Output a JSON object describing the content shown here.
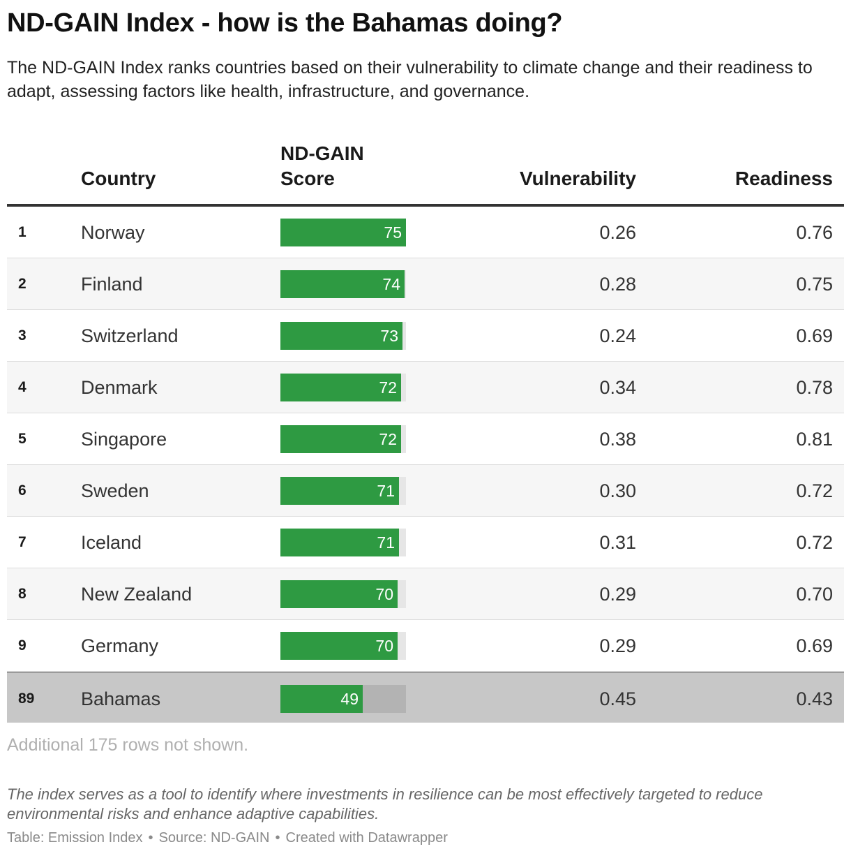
{
  "title": "ND-GAIN Index - how is the Bahamas doing?",
  "subtitle": "The ND-GAIN Index ranks countries based on their vulnerability to climate change and their readiness to adapt, assessing factors like health, infrastructure, and governance.",
  "columns": {
    "country": "Country",
    "score": "ND-GAIN Score",
    "vulnerability": "Vulnerability",
    "readiness": "Readiness"
  },
  "colors": {
    "bar": "#2e9a42",
    "bar_track": "#e6e6e6",
    "highlight_row": "#c7c7c7"
  },
  "chart_data": {
    "type": "table",
    "score_scale": [
      0,
      75
    ],
    "rows": [
      {
        "rank": "1",
        "country": "Norway",
        "score": 75,
        "vulnerability": "0.26",
        "readiness": "0.76"
      },
      {
        "rank": "2",
        "country": "Finland",
        "score": 74,
        "vulnerability": "0.28",
        "readiness": "0.75"
      },
      {
        "rank": "3",
        "country": "Switzerland",
        "score": 73,
        "vulnerability": "0.24",
        "readiness": "0.69"
      },
      {
        "rank": "4",
        "country": "Denmark",
        "score": 72,
        "vulnerability": "0.34",
        "readiness": "0.78"
      },
      {
        "rank": "5",
        "country": "Singapore",
        "score": 72,
        "vulnerability": "0.38",
        "readiness": "0.81"
      },
      {
        "rank": "6",
        "country": "Sweden",
        "score": 71,
        "vulnerability": "0.30",
        "readiness": "0.72"
      },
      {
        "rank": "7",
        "country": "Iceland",
        "score": 71,
        "vulnerability": "0.31",
        "readiness": "0.72"
      },
      {
        "rank": "8",
        "country": "New Zealand",
        "score": 70,
        "vulnerability": "0.29",
        "readiness": "0.70"
      },
      {
        "rank": "9",
        "country": "Germany",
        "score": 70,
        "vulnerability": "0.29",
        "readiness": "0.69"
      },
      {
        "rank": "89",
        "country": "Bahamas",
        "score": 49,
        "vulnerability": "0.45",
        "readiness": "0.43",
        "highlighted": true
      }
    ]
  },
  "more_rows": "Additional 175 rows not shown.",
  "note": "The index serves as a tool to identify where investments in resilience can be most effectively targeted to reduce environmental risks and enhance adaptive capabilities.",
  "footer": {
    "table": "Table: Emission Index",
    "source": "Source: ND-GAIN",
    "credit": "Created with Datawrapper",
    "separator": "•"
  }
}
